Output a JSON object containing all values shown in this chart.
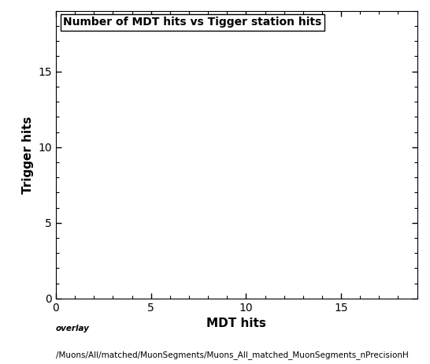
{
  "title": "Number of MDT hits vs Tigger station hits",
  "xlabel": "MDT hits",
  "ylabel": "Trigger hits",
  "xlim": [
    0,
    19
  ],
  "ylim": [
    0,
    19
  ],
  "xticks": [
    0,
    5,
    10,
    15
  ],
  "yticks": [
    0,
    5,
    10,
    15
  ],
  "x_minor_ticks": 1,
  "y_minor_ticks": 1,
  "caption_line1": "overlay",
  "caption_line2": "/Muons/All/matched/MuonSegments/Muons_All_matched_MuonSegments_nPrecisionH",
  "background_color": "#ffffff",
  "plot_bg_color": "#ffffff",
  "title_fontsize": 10,
  "axis_label_fontsize": 11,
  "tick_fontsize": 10,
  "caption_fontsize": 7.5
}
